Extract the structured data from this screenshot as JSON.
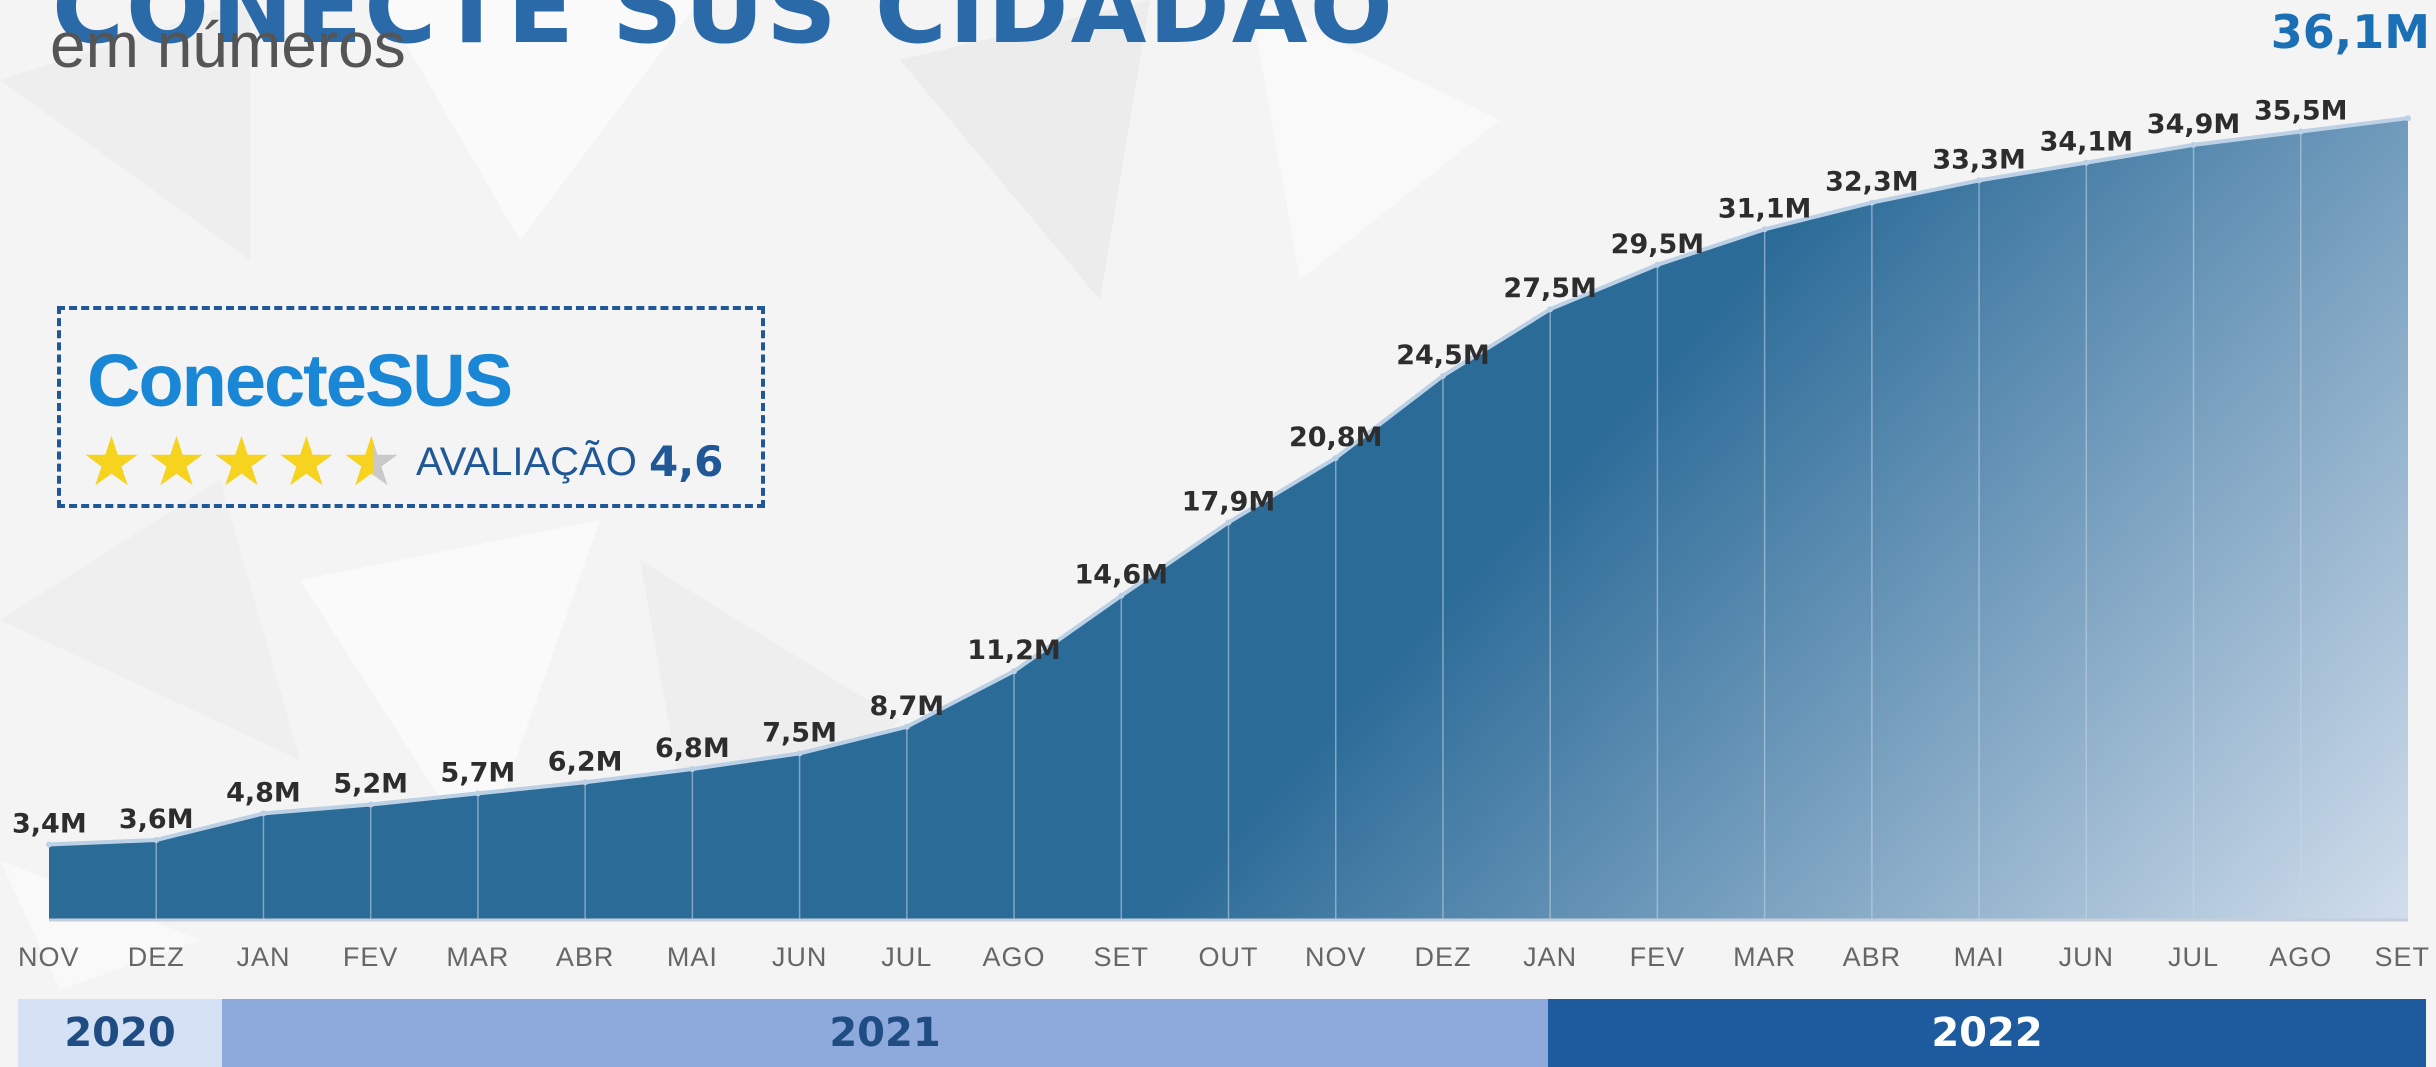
{
  "header": {
    "title": "CONECTE SUS CIDADÃO",
    "subtitle": "em números"
  },
  "rating_box": {
    "brand_part1": "Conecte",
    "brand_part2": "SUS",
    "label": "AVALIAÇÃO",
    "value": "4,6",
    "stars": 4.6
  },
  "chart_data": {
    "type": "area",
    "title": "",
    "xlabel": "",
    "ylabel": "",
    "ylim": [
      0,
      38
    ],
    "unit": "M",
    "highlight": "36,1M",
    "categories": [
      "NOV",
      "DEZ",
      "JAN",
      "FEV",
      "MAR",
      "ABR",
      "MAI",
      "JUN",
      "JUL",
      "AGO",
      "SET",
      "OUT",
      "NOV",
      "DEZ",
      "JAN",
      "FEV",
      "MAR",
      "ABR",
      "MAI",
      "JUN",
      "JUL",
      "AGO",
      "SET"
    ],
    "values": [
      3.4,
      3.6,
      4.8,
      5.2,
      5.7,
      6.2,
      6.8,
      7.5,
      8.7,
      11.2,
      14.6,
      17.9,
      20.8,
      24.5,
      27.5,
      29.5,
      31.1,
      32.3,
      33.3,
      34.1,
      34.9,
      35.5,
      36.1
    ],
    "data_labels": [
      "3,4M",
      "3,6M",
      "4,8M",
      "5,2M",
      "5,7M",
      "6,2M",
      "6,8M",
      "7,5M",
      "8,7M",
      "11,2M",
      "14,6M",
      "17,9M",
      "20,8M",
      "24,5M",
      "27,5M",
      "29,5M",
      "31,1M",
      "32,3M",
      "33,3M",
      "34,1M",
      "34,9M",
      "35,5M",
      "36,1M"
    ],
    "years": [
      {
        "label": "2020",
        "months": 2
      },
      {
        "label": "2021",
        "months": 12
      },
      {
        "label": "2022",
        "months": 9
      }
    ],
    "colors": {
      "area": "#2b6b98",
      "line": "#bcd1e6",
      "year_2020": "#d5e1f5",
      "year_2021": "#8eaadc",
      "year_2022": "#1e5a9e",
      "year_text_light": "#1e4c83",
      "year_text_dark": "#ffffff"
    }
  }
}
